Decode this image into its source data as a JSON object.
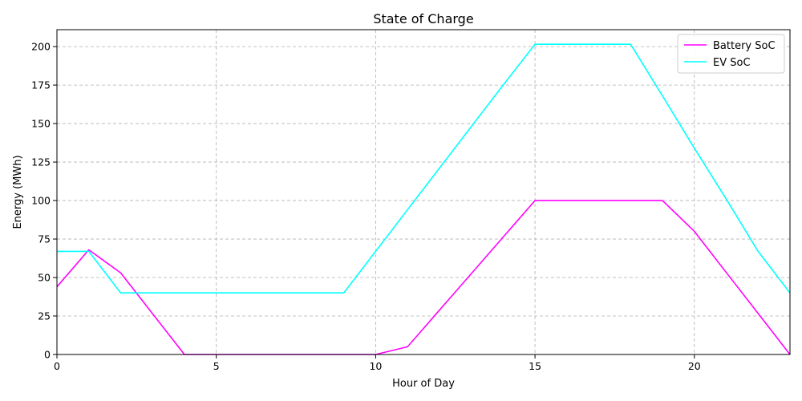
{
  "chart_data": {
    "type": "line",
    "title": "State of Charge",
    "xlabel": "Hour of Day",
    "ylabel": "Energy (MWh)",
    "xlim": [
      0,
      23
    ],
    "ylim": [
      0,
      211
    ],
    "xticks": [
      0,
      5,
      10,
      15,
      20
    ],
    "yticks": [
      0,
      25,
      50,
      75,
      100,
      125,
      150,
      175,
      200
    ],
    "grid": true,
    "legend_position": "top-right",
    "x": [
      0,
      1,
      2,
      3,
      4,
      5,
      6,
      7,
      8,
      9,
      10,
      11,
      12,
      13,
      14,
      15,
      16,
      17,
      18,
      19,
      20,
      21,
      22,
      23
    ],
    "series": [
      {
        "name": "Battery SoC",
        "color": "#ff00ff",
        "values": [
          44,
          68,
          53,
          26.5,
          0,
          0,
          0,
          0,
          0,
          0,
          0,
          5,
          28.75,
          52.5,
          76.25,
          100,
          100,
          100,
          100,
          100,
          80,
          53.3,
          26.7,
          0
        ]
      },
      {
        "name": "EV SoC",
        "color": "#00ffff",
        "values": [
          67,
          67,
          40,
          40,
          40,
          40,
          40,
          40,
          40,
          40,
          67,
          94,
          121,
          148,
          175,
          201.5,
          201.5,
          201.5,
          201.5,
          168,
          134,
          101,
          67,
          40
        ]
      }
    ]
  }
}
